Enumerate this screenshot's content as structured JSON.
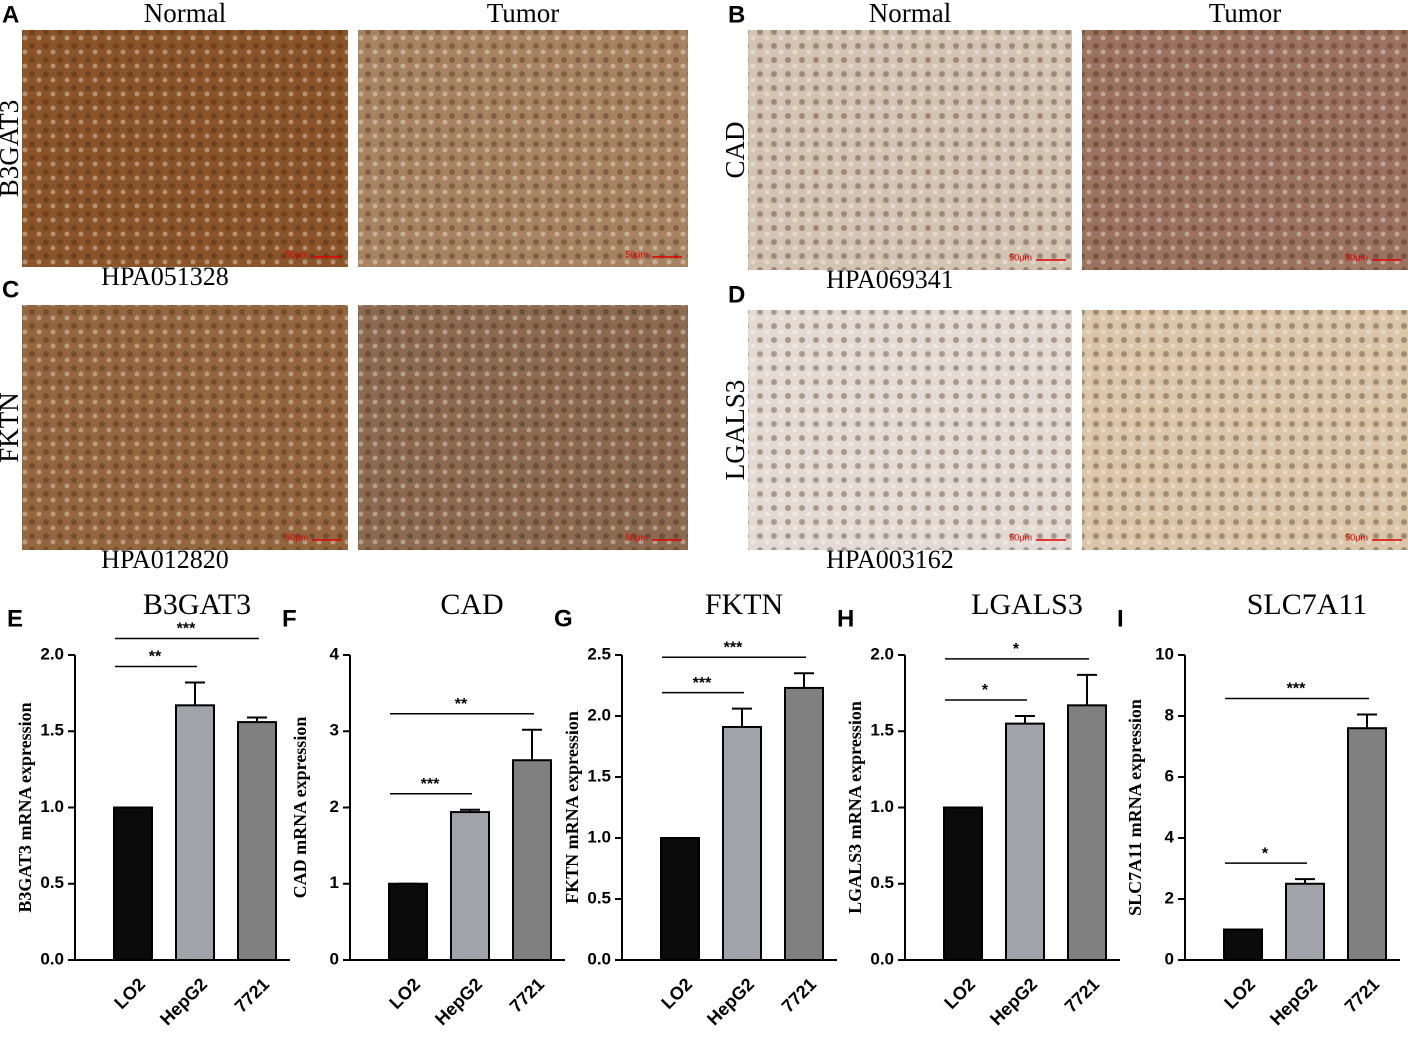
{
  "ihc_panels": [
    {
      "letter": "A",
      "gene": "B3GAT3",
      "antibody": "HPA051328",
      "headers": [
        "Normal",
        "Tumor"
      ],
      "scale_bars": [
        "50μm",
        "50μm"
      ]
    },
    {
      "letter": "B",
      "gene": "CAD",
      "antibody": "HPA069341",
      "headers": [
        "Normal",
        "Tumor"
      ],
      "scale_bars": [
        "50μm",
        "50μm"
      ]
    },
    {
      "letter": "C",
      "gene": "FKTN",
      "antibody": "HPA012820",
      "scale_bars": [
        "50μm",
        "50μm"
      ]
    },
    {
      "letter": "D",
      "gene": "LGALS3",
      "antibody": "HPA003162",
      "scale_bars": [
        "50μm",
        "50μm"
      ]
    }
  ],
  "chart_data": [
    {
      "type": "bar",
      "panel": "E",
      "title": "B3GAT3",
      "y_label": "B3GAT3 mRNA expression",
      "categories": [
        "LO2",
        "HepG2",
        "7721"
      ],
      "values": [
        1.0,
        1.67,
        1.56
      ],
      "errors": [
        0,
        0.15,
        0.03
      ],
      "colors": [
        "#0b0b0b",
        "#a2a2aa",
        "#808080"
      ],
      "ylim": [
        0,
        2.0
      ],
      "yticks": [
        {
          "value": 0,
          "label": "0.0"
        },
        {
          "value": 0.5,
          "label": "0.5"
        },
        {
          "value": 1,
          "label": "1.0"
        },
        {
          "value": 1.5,
          "label": "1.5"
        },
        {
          "value": 2,
          "label": "2.0"
        }
      ],
      "annotations": [
        "**",
        "***"
      ]
    },
    {
      "type": "bar",
      "panel": "F",
      "title": "CAD",
      "y_label": "CAD mRNA expression",
      "categories": [
        "LO2",
        "HepG2",
        "7721"
      ],
      "values": [
        1.0,
        1.94,
        2.62
      ],
      "errors": [
        0,
        0.03,
        0.4
      ],
      "colors": [
        "#0b0b0b",
        "#a2a2aa",
        "#808080"
      ],
      "ylim": [
        0,
        4
      ],
      "yticks": [
        0,
        1,
        2,
        3,
        4
      ],
      "annotations": [
        "***",
        "**"
      ]
    },
    {
      "type": "bar",
      "panel": "G",
      "title": "FKTN",
      "y_label": "FKTN mRNA expression",
      "categories": [
        "LO2",
        "HepG2",
        "7721"
      ],
      "values": [
        1.0,
        1.91,
        2.23
      ],
      "errors": [
        0,
        0.15,
        0.12
      ],
      "colors": [
        "#0b0b0b",
        "#a2a2aa",
        "#808080"
      ],
      "ylim": [
        0,
        2.5
      ],
      "yticks": [
        {
          "value": 0,
          "label": "0.0"
        },
        {
          "value": 0.5,
          "label": "0.5"
        },
        {
          "value": 1,
          "label": "1.0"
        },
        {
          "value": 1.5,
          "label": "1.5"
        },
        {
          "value": 2,
          "label": "2.0"
        },
        {
          "value": 2.5,
          "label": "2.5"
        }
      ],
      "annotations": [
        "***",
        "***"
      ]
    },
    {
      "type": "bar",
      "panel": "H",
      "title": "LGALS3",
      "y_label": "LGALS3 mRNA expression",
      "categories": [
        "LO2",
        "HepG2",
        "7721"
      ],
      "values": [
        1.0,
        1.55,
        1.67
      ],
      "errors": [
        0,
        0.05,
        0.2
      ],
      "colors": [
        "#0b0b0b",
        "#a2a2aa",
        "#808080"
      ],
      "ylim": [
        0,
        2.0
      ],
      "yticks": [
        {
          "value": 0,
          "label": "0.0"
        },
        {
          "value": 0.5,
          "label": "0.5"
        },
        {
          "value": 1,
          "label": "1.0"
        },
        {
          "value": 1.5,
          "label": "1.5"
        },
        {
          "value": 2,
          "label": "2.0"
        }
      ],
      "annotations": [
        "*",
        "*"
      ]
    },
    {
      "type": "bar",
      "panel": "I",
      "title": "SLC7A11",
      "y_label": "SLC7A11 mRNA expression",
      "categories": [
        "LO2",
        "HepG2",
        "7721"
      ],
      "values": [
        1.0,
        2.5,
        7.6
      ],
      "errors": [
        0,
        0.15,
        0.45
      ],
      "colors": [
        "#0b0b0b",
        "#a2a2aa",
        "#808080"
      ],
      "ylim": [
        0,
        10
      ],
      "yticks": [
        0,
        2,
        4,
        6,
        8,
        10
      ],
      "annotations": [
        "*",
        "***"
      ]
    }
  ]
}
